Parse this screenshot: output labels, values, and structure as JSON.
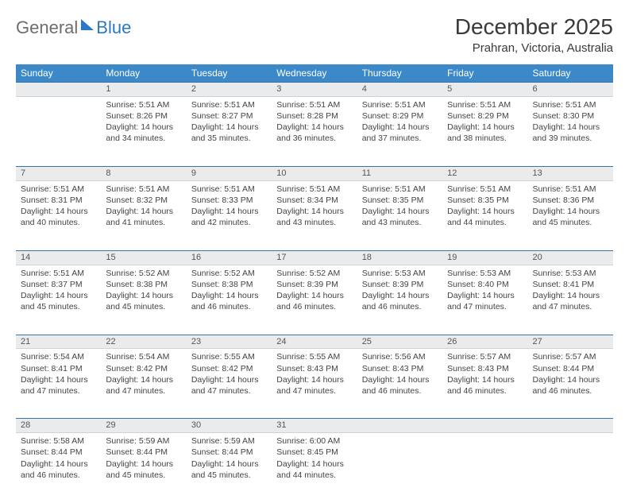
{
  "header": {
    "logo_text1": "General",
    "logo_text2": "Blue",
    "month": "December 2025",
    "location": "Prahran, Victoria, Australia"
  },
  "days": [
    "Sunday",
    "Monday",
    "Tuesday",
    "Wednesday",
    "Thursday",
    "Friday",
    "Saturday"
  ],
  "weeks": [
    {
      "nums": [
        "",
        "1",
        "2",
        "3",
        "4",
        "5",
        "6"
      ],
      "cells": [
        {
          "sunrise": "",
          "sunset": "",
          "daylight": ""
        },
        {
          "sunrise": "Sunrise: 5:51 AM",
          "sunset": "Sunset: 8:26 PM",
          "daylight": "Daylight: 14 hours and 34 minutes."
        },
        {
          "sunrise": "Sunrise: 5:51 AM",
          "sunset": "Sunset: 8:27 PM",
          "daylight": "Daylight: 14 hours and 35 minutes."
        },
        {
          "sunrise": "Sunrise: 5:51 AM",
          "sunset": "Sunset: 8:28 PM",
          "daylight": "Daylight: 14 hours and 36 minutes."
        },
        {
          "sunrise": "Sunrise: 5:51 AM",
          "sunset": "Sunset: 8:29 PM",
          "daylight": "Daylight: 14 hours and 37 minutes."
        },
        {
          "sunrise": "Sunrise: 5:51 AM",
          "sunset": "Sunset: 8:29 PM",
          "daylight": "Daylight: 14 hours and 38 minutes."
        },
        {
          "sunrise": "Sunrise: 5:51 AM",
          "sunset": "Sunset: 8:30 PM",
          "daylight": "Daylight: 14 hours and 39 minutes."
        }
      ]
    },
    {
      "nums": [
        "7",
        "8",
        "9",
        "10",
        "11",
        "12",
        "13"
      ],
      "cells": [
        {
          "sunrise": "Sunrise: 5:51 AM",
          "sunset": "Sunset: 8:31 PM",
          "daylight": "Daylight: 14 hours and 40 minutes."
        },
        {
          "sunrise": "Sunrise: 5:51 AM",
          "sunset": "Sunset: 8:32 PM",
          "daylight": "Daylight: 14 hours and 41 minutes."
        },
        {
          "sunrise": "Sunrise: 5:51 AM",
          "sunset": "Sunset: 8:33 PM",
          "daylight": "Daylight: 14 hours and 42 minutes."
        },
        {
          "sunrise": "Sunrise: 5:51 AM",
          "sunset": "Sunset: 8:34 PM",
          "daylight": "Daylight: 14 hours and 43 minutes."
        },
        {
          "sunrise": "Sunrise: 5:51 AM",
          "sunset": "Sunset: 8:35 PM",
          "daylight": "Daylight: 14 hours and 43 minutes."
        },
        {
          "sunrise": "Sunrise: 5:51 AM",
          "sunset": "Sunset: 8:35 PM",
          "daylight": "Daylight: 14 hours and 44 minutes."
        },
        {
          "sunrise": "Sunrise: 5:51 AM",
          "sunset": "Sunset: 8:36 PM",
          "daylight": "Daylight: 14 hours and 45 minutes."
        }
      ]
    },
    {
      "nums": [
        "14",
        "15",
        "16",
        "17",
        "18",
        "19",
        "20"
      ],
      "cells": [
        {
          "sunrise": "Sunrise: 5:51 AM",
          "sunset": "Sunset: 8:37 PM",
          "daylight": "Daylight: 14 hours and 45 minutes."
        },
        {
          "sunrise": "Sunrise: 5:52 AM",
          "sunset": "Sunset: 8:38 PM",
          "daylight": "Daylight: 14 hours and 45 minutes."
        },
        {
          "sunrise": "Sunrise: 5:52 AM",
          "sunset": "Sunset: 8:38 PM",
          "daylight": "Daylight: 14 hours and 46 minutes."
        },
        {
          "sunrise": "Sunrise: 5:52 AM",
          "sunset": "Sunset: 8:39 PM",
          "daylight": "Daylight: 14 hours and 46 minutes."
        },
        {
          "sunrise": "Sunrise: 5:53 AM",
          "sunset": "Sunset: 8:39 PM",
          "daylight": "Daylight: 14 hours and 46 minutes."
        },
        {
          "sunrise": "Sunrise: 5:53 AM",
          "sunset": "Sunset: 8:40 PM",
          "daylight": "Daylight: 14 hours and 47 minutes."
        },
        {
          "sunrise": "Sunrise: 5:53 AM",
          "sunset": "Sunset: 8:41 PM",
          "daylight": "Daylight: 14 hours and 47 minutes."
        }
      ]
    },
    {
      "nums": [
        "21",
        "22",
        "23",
        "24",
        "25",
        "26",
        "27"
      ],
      "cells": [
        {
          "sunrise": "Sunrise: 5:54 AM",
          "sunset": "Sunset: 8:41 PM",
          "daylight": "Daylight: 14 hours and 47 minutes."
        },
        {
          "sunrise": "Sunrise: 5:54 AM",
          "sunset": "Sunset: 8:42 PM",
          "daylight": "Daylight: 14 hours and 47 minutes."
        },
        {
          "sunrise": "Sunrise: 5:55 AM",
          "sunset": "Sunset: 8:42 PM",
          "daylight": "Daylight: 14 hours and 47 minutes."
        },
        {
          "sunrise": "Sunrise: 5:55 AM",
          "sunset": "Sunset: 8:43 PM",
          "daylight": "Daylight: 14 hours and 47 minutes."
        },
        {
          "sunrise": "Sunrise: 5:56 AM",
          "sunset": "Sunset: 8:43 PM",
          "daylight": "Daylight: 14 hours and 46 minutes."
        },
        {
          "sunrise": "Sunrise: 5:57 AM",
          "sunset": "Sunset: 8:43 PM",
          "daylight": "Daylight: 14 hours and 46 minutes."
        },
        {
          "sunrise": "Sunrise: 5:57 AM",
          "sunset": "Sunset: 8:44 PM",
          "daylight": "Daylight: 14 hours and 46 minutes."
        }
      ]
    },
    {
      "nums": [
        "28",
        "29",
        "30",
        "31",
        "",
        "",
        ""
      ],
      "cells": [
        {
          "sunrise": "Sunrise: 5:58 AM",
          "sunset": "Sunset: 8:44 PM",
          "daylight": "Daylight: 14 hours and 46 minutes."
        },
        {
          "sunrise": "Sunrise: 5:59 AM",
          "sunset": "Sunset: 8:44 PM",
          "daylight": "Daylight: 14 hours and 45 minutes."
        },
        {
          "sunrise": "Sunrise: 5:59 AM",
          "sunset": "Sunset: 8:44 PM",
          "daylight": "Daylight: 14 hours and 45 minutes."
        },
        {
          "sunrise": "Sunrise: 6:00 AM",
          "sunset": "Sunset: 8:45 PM",
          "daylight": "Daylight: 14 hours and 44 minutes."
        },
        {
          "sunrise": "",
          "sunset": "",
          "daylight": ""
        },
        {
          "sunrise": "",
          "sunset": "",
          "daylight": ""
        },
        {
          "sunrise": "",
          "sunset": "",
          "daylight": ""
        }
      ]
    }
  ],
  "styling": {
    "header_bg": "#3b89c9",
    "header_text": "#ffffff",
    "daynum_bg": "#e9ebed",
    "daynum_border_top": "#3b75a8",
    "body_text": "#444444",
    "page_bg": "#ffffff",
    "title_fontsize": 28,
    "location_fontsize": 15,
    "dayhead_fontsize": 12,
    "cell_fontsize": 10.5
  }
}
